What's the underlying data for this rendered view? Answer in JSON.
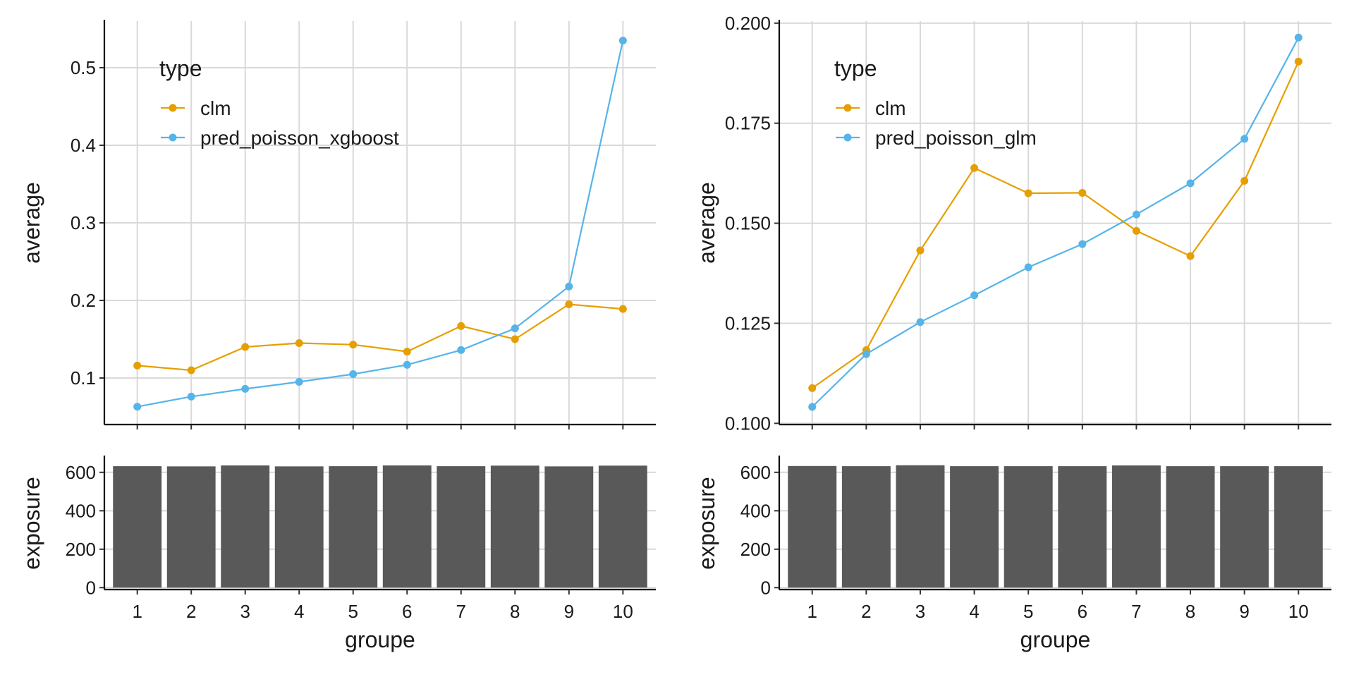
{
  "chart_data": [
    {
      "type": "line",
      "panel": "top-left",
      "x": [
        1,
        2,
        3,
        4,
        5,
        6,
        7,
        8,
        9,
        10
      ],
      "series": [
        {
          "name": "clm",
          "color": "#E69F00",
          "values": [
            0.116,
            0.11,
            0.14,
            0.145,
            0.143,
            0.134,
            0.167,
            0.15,
            0.195,
            0.189
          ]
        },
        {
          "name": "pred_poisson_xgboost",
          "color": "#56B4E9",
          "values": [
            0.063,
            0.076,
            0.086,
            0.095,
            0.105,
            0.117,
            0.136,
            0.164,
            0.218,
            0.535
          ]
        }
      ],
      "title": "",
      "xlabel": "",
      "ylabel": "average",
      "legend_title": "type",
      "legend_position": "top-left",
      "ylim": [
        0.04,
        0.56
      ],
      "yticks": [
        0.1,
        0.2,
        0.3,
        0.4,
        0.5
      ],
      "ytick_labels": [
        "0.1",
        "0.2",
        "0.3",
        "0.4",
        "0.5"
      ],
      "grid": true
    },
    {
      "type": "bar",
      "panel": "bottom-left",
      "categories": [
        "1",
        "2",
        "3",
        "4",
        "5",
        "6",
        "7",
        "8",
        "9",
        "10"
      ],
      "values": [
        632,
        631,
        636,
        631,
        632,
        636,
        632,
        635,
        631,
        635
      ],
      "color": "#595959",
      "xlabel": "groupe",
      "ylabel": "exposure",
      "ylim": [
        -10,
        680
      ],
      "yticks": [
        0,
        200,
        400,
        600
      ],
      "ytick_labels": [
        "0",
        "200",
        "400",
        "600"
      ],
      "grid": true
    },
    {
      "type": "line",
      "panel": "top-right",
      "x": [
        1,
        2,
        3,
        4,
        5,
        6,
        7,
        8,
        9,
        10
      ],
      "series": [
        {
          "name": "clm",
          "color": "#E69F00",
          "values": [
            0.1088,
            0.1183,
            0.1432,
            0.1638,
            0.1575,
            0.1576,
            0.1481,
            0.1418,
            0.1606,
            0.1904
          ]
        },
        {
          "name": "pred_poisson_glm",
          "color": "#56B4E9",
          "values": [
            0.1041,
            0.1173,
            0.1253,
            0.132,
            0.139,
            0.1448,
            0.1522,
            0.16,
            0.1711,
            0.1964
          ]
        }
      ],
      "title": "",
      "xlabel": "",
      "ylabel": "average",
      "legend_title": "type",
      "legend_position": "top-left",
      "ylim": [
        0.0997,
        0.2005
      ],
      "yticks": [
        0.1,
        0.125,
        0.15,
        0.175,
        0.2
      ],
      "ytick_labels": [
        "0.100",
        "0.125",
        "0.150",
        "0.175",
        "0.200"
      ],
      "grid": true
    },
    {
      "type": "bar",
      "panel": "bottom-right",
      "categories": [
        "1",
        "2",
        "3",
        "4",
        "5",
        "6",
        "7",
        "8",
        "9",
        "10"
      ],
      "values": [
        633,
        632,
        637,
        632,
        632,
        632,
        636,
        632,
        632,
        632
      ],
      "color": "#595959",
      "xlabel": "groupe",
      "ylabel": "exposure",
      "ylim": [
        -10,
        680
      ],
      "yticks": [
        0,
        200,
        400,
        600
      ],
      "ytick_labels": [
        "0",
        "200",
        "400",
        "600"
      ],
      "grid": true
    }
  ]
}
